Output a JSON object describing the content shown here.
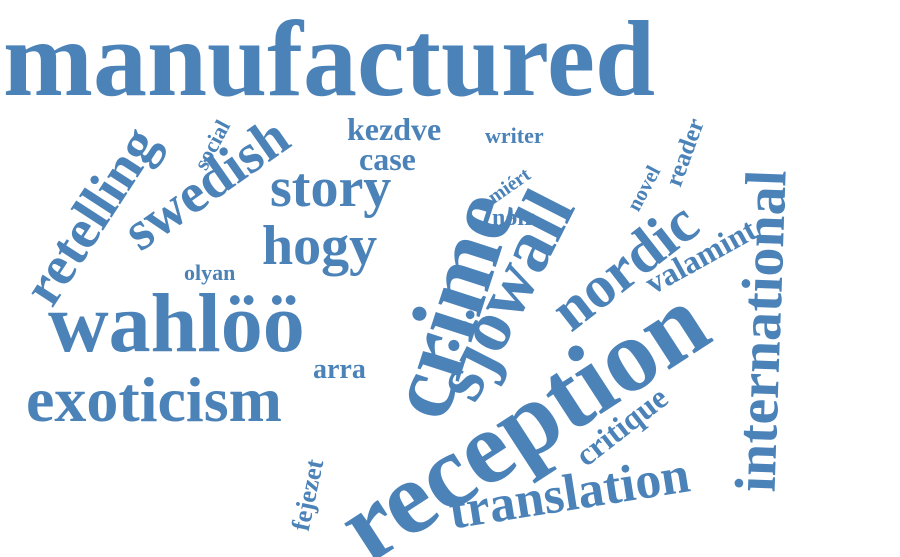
{
  "color": "#4b82b8",
  "words": [
    {
      "key": "manufactured",
      "text": "manufactured"
    },
    {
      "key": "reception",
      "text": "reception"
    },
    {
      "key": "crime",
      "text": "crime"
    },
    {
      "key": "sjowall",
      "text": "sjöwall"
    },
    {
      "key": "wahloo",
      "text": "wahlöö"
    },
    {
      "key": "exoticism",
      "text": "exoticism"
    },
    {
      "key": "international",
      "text": "international"
    },
    {
      "key": "translation",
      "text": "translation"
    },
    {
      "key": "nordic",
      "text": "nordic"
    },
    {
      "key": "retelling",
      "text": "retelling"
    },
    {
      "key": "swedish",
      "text": "swedish"
    },
    {
      "key": "story",
      "text": "story"
    },
    {
      "key": "hogy",
      "text": "hogy"
    },
    {
      "key": "valamint",
      "text": "valamint"
    },
    {
      "key": "critique",
      "text": "critique"
    },
    {
      "key": "kezdve",
      "text": "kezdve"
    },
    {
      "key": "case",
      "text": "case"
    },
    {
      "key": "writer",
      "text": "writer"
    },
    {
      "key": "reader",
      "text": "reader"
    },
    {
      "key": "novel",
      "text": "novel"
    },
    {
      "key": "miert",
      "text": "miért"
    },
    {
      "key": "noir",
      "text": "noir"
    },
    {
      "key": "social",
      "text": "social"
    },
    {
      "key": "olyan",
      "text": "olyan"
    },
    {
      "key": "arra",
      "text": "arra"
    },
    {
      "key": "fejezet",
      "text": "fejezet"
    }
  ]
}
